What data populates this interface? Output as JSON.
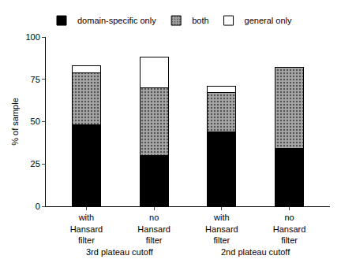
{
  "chart_data": {
    "type": "bar",
    "stacked": true,
    "grid": false,
    "legend": "top",
    "y_label": "% of sample",
    "categories": [
      "with Hansard filter",
      "no Hansard filter",
      "with Hansard filter",
      "no Hansard filter"
    ],
    "annotations": [
      "3rd plateau cutoff",
      "2nd plateau cutoff"
    ],
    "series": [
      {
        "name": "domain-specific only",
        "color": "#000000",
        "values": [
          48,
          30,
          44,
          34
        ]
      },
      {
        "name": "both",
        "color": "#a8a8a8",
        "values": [
          31,
          40,
          23,
          48
        ]
      },
      {
        "name": "general only",
        "color": "#ffffff",
        "values": [
          4,
          18,
          4,
          0
        ]
      }
    ],
    "ylim": [
      0,
      100
    ],
    "yticks": [
      0,
      25,
      50,
      75,
      100
    ]
  }
}
